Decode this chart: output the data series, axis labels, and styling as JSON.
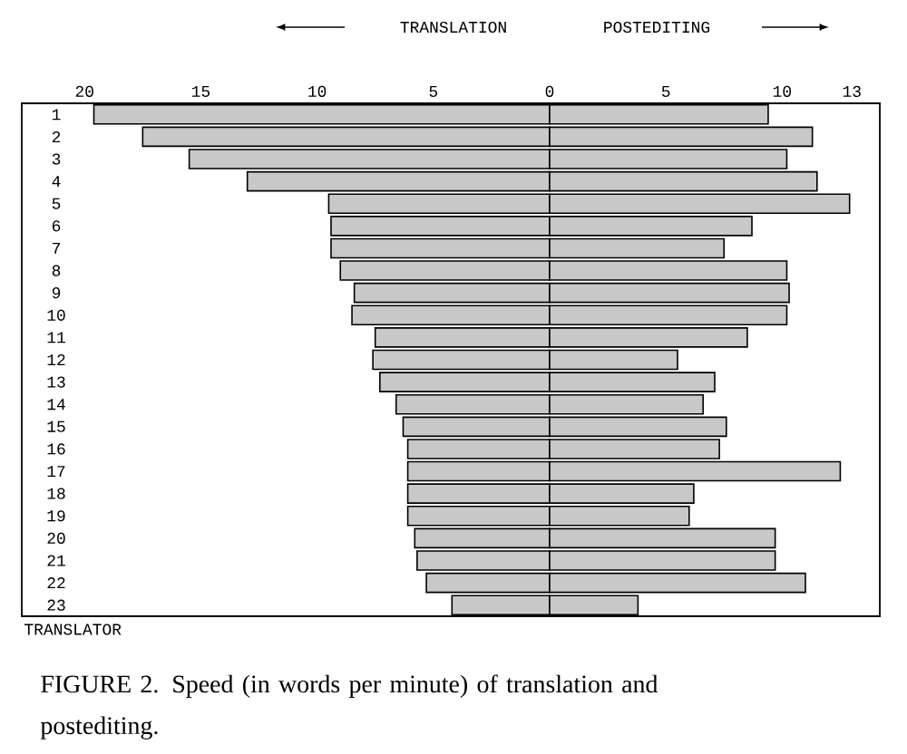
{
  "chart_data": {
    "type": "bar",
    "orientation": "horizontal",
    "stacked": true,
    "categories": [
      "1",
      "2",
      "3",
      "4",
      "5",
      "6",
      "7",
      "8",
      "9",
      "10",
      "11",
      "12",
      "13",
      "14",
      "15",
      "16",
      "17",
      "18",
      "19",
      "20",
      "21",
      "22",
      "23"
    ],
    "series": [
      {
        "color": "#c8c8c8",
        "values": [
          -19.6,
          -17.5,
          -15.5,
          -13.0,
          -9.5,
          -9.4,
          -9.4,
          -9.0,
          -8.4,
          -8.5,
          -7.5,
          -7.6,
          -7.3,
          -6.6,
          -6.3,
          -6.1,
          -6.1,
          -6.1,
          -6.1,
          -5.8,
          -5.7,
          -5.3,
          -4.2
        ]
      },
      {
        "color": "#c8c8c8",
        "values": [
          9.4,
          11.3,
          10.2,
          11.5,
          12.9,
          8.7,
          7.5,
          10.2,
          10.3,
          10.2,
          8.5,
          5.5,
          7.1,
          6.6,
          7.6,
          7.3,
          12.5,
          6.2,
          6.0,
          9.7,
          9.7,
          11.0,
          3.8
        ]
      }
    ],
    "xlim": [
      -22.7,
      14.2
    ],
    "xticks": [
      {
        "value": -20,
        "label": "20"
      },
      {
        "value": -15,
        "label": "15"
      },
      {
        "value": -10,
        "label": "10"
      },
      {
        "value": -5,
        "label": "5"
      },
      0,
      5,
      10,
      13
    ],
    "annotations": [
      "TRANSLATION",
      "POSTEDITING",
      "TRANSLATOR",
      "FIGURE 2.   Speed (in words per minute) of translation and postediting."
    ]
  }
}
